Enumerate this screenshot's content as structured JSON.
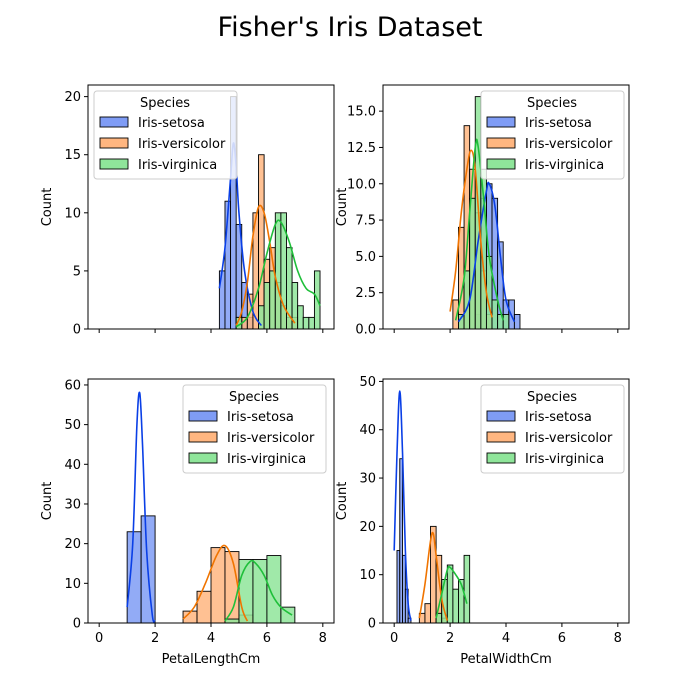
{
  "figure": {
    "title": "Fisher's Iris Dataset"
  },
  "species_colors": {
    "Iris-setosa": {
      "fill": "#7f9cf5",
      "line": "#0a3fe6"
    },
    "Iris-versicolor": {
      "fill": "#ffb680",
      "line": "#f07400"
    },
    "Iris-virginica": {
      "fill": "#8fe59a",
      "line": "#1fbf3a"
    }
  },
  "chart_data": [
    {
      "type": "bar",
      "subtype": "histogram-kde",
      "id": "sepal-length",
      "xlabel": "",
      "ylabel": "Count",
      "xlim": [
        -0.4,
        8.4
      ],
      "ylim": [
        0,
        21
      ],
      "xticks": [],
      "yticks": [
        0,
        5,
        10,
        15,
        20
      ],
      "legend": {
        "title": "Species",
        "placement": "upper-left",
        "entries": [
          "Iris-setosa",
          "Iris-versicolor",
          "Iris-virginica"
        ]
      },
      "series": [
        {
          "name": "Iris-setosa",
          "bin_width": 0.2,
          "bins": [
            [
              4.3,
              5
            ],
            [
              4.5,
              11
            ],
            [
              4.7,
              20
            ],
            [
              4.9,
              9
            ],
            [
              5.1,
              4
            ],
            [
              5.3,
              1
            ]
          ],
          "kde": [
            [
              4.3,
              3.5
            ],
            [
              4.5,
              7
            ],
            [
              4.7,
              13
            ],
            [
              4.8,
              16
            ],
            [
              4.9,
              14
            ],
            [
              5.0,
              10
            ],
            [
              5.2,
              5
            ],
            [
              5.5,
              1.5
            ],
            [
              5.8,
              0.3
            ]
          ]
        },
        {
          "name": "Iris-versicolor",
          "bin_width": 0.2,
          "bins": [
            [
              4.9,
              1
            ],
            [
              5.1,
              1
            ],
            [
              5.3,
              3
            ],
            [
              5.5,
              10
            ],
            [
              5.7,
              15
            ],
            [
              5.9,
              6
            ],
            [
              6.1,
              7
            ],
            [
              6.3,
              4
            ],
            [
              6.5,
              2
            ],
            [
              6.7,
              1
            ],
            [
              6.9,
              1
            ]
          ],
          "kde": [
            [
              4.9,
              0.3
            ],
            [
              5.1,
              1.5
            ],
            [
              5.3,
              4
            ],
            [
              5.5,
              8
            ],
            [
              5.7,
              10.5
            ],
            [
              5.9,
              10
            ],
            [
              6.1,
              7.5
            ],
            [
              6.3,
              4.5
            ],
            [
              6.6,
              2
            ],
            [
              7.0,
              0.5
            ]
          ]
        },
        {
          "name": "Iris-virginica",
          "bin_width": 0.2,
          "bins": [
            [
              4.9,
              1
            ],
            [
              5.7,
              2
            ],
            [
              5.9,
              4
            ],
            [
              6.1,
              5
            ],
            [
              6.3,
              10
            ],
            [
              6.5,
              10
            ],
            [
              6.7,
              7
            ],
            [
              6.9,
              4
            ],
            [
              7.1,
              2
            ],
            [
              7.3,
              1
            ],
            [
              7.5,
              1
            ],
            [
              7.7,
              5
            ]
          ],
          "kde": [
            [
              4.9,
              0.2
            ],
            [
              5.3,
              1
            ],
            [
              5.7,
              3.5
            ],
            [
              6.0,
              6.5
            ],
            [
              6.3,
              9
            ],
            [
              6.5,
              9.2
            ],
            [
              6.8,
              7.5
            ],
            [
              7.1,
              5
            ],
            [
              7.4,
              3.5
            ],
            [
              7.7,
              3
            ],
            [
              7.9,
              2
            ]
          ]
        }
      ]
    },
    {
      "type": "bar",
      "subtype": "histogram-kde",
      "id": "sepal-width",
      "xlabel": "",
      "ylabel": "Count",
      "xlim": [
        -0.4,
        8.4
      ],
      "ylim": [
        0,
        16.8
      ],
      "xticks": [],
      "yticks": [
        0,
        2.5,
        5.0,
        7.5,
        10.0,
        12.5,
        15.0
      ],
      "legend": {
        "title": "Species",
        "placement": "upper-right",
        "entries": [
          "Iris-setosa",
          "Iris-versicolor",
          "Iris-virginica"
        ]
      },
      "series": [
        {
          "name": "Iris-setosa",
          "bin_width": 0.2,
          "bins": [
            [
              2.3,
              1
            ],
            [
              2.9,
              1
            ],
            [
              3.1,
              9
            ],
            [
              3.3,
              10
            ],
            [
              3.5,
              9
            ],
            [
              3.7,
              6
            ],
            [
              3.9,
              2
            ],
            [
              4.1,
              2
            ],
            [
              4.3,
              1
            ]
          ],
          "kde": [
            [
              2.3,
              0.5
            ],
            [
              2.7,
              2
            ],
            [
              3.0,
              6
            ],
            [
              3.3,
              9.5
            ],
            [
              3.4,
              10
            ],
            [
              3.6,
              8.5
            ],
            [
              3.8,
              5
            ],
            [
              4.0,
              2
            ],
            [
              4.3,
              0.5
            ]
          ]
        },
        {
          "name": "Iris-versicolor",
          "bin_width": 0.2,
          "bins": [
            [
              2.1,
              2
            ],
            [
              2.3,
              7
            ],
            [
              2.5,
              14
            ],
            [
              2.7,
              11
            ],
            [
              2.9,
              8
            ],
            [
              3.1,
              4
            ],
            [
              3.3,
              1
            ]
          ],
          "kde": [
            [
              2.0,
              1.2
            ],
            [
              2.2,
              4
            ],
            [
              2.4,
              8
            ],
            [
              2.6,
              11
            ],
            [
              2.75,
              12.3
            ],
            [
              2.9,
              11
            ],
            [
              3.1,
              6
            ],
            [
              3.3,
              2.5
            ],
            [
              3.5,
              0.8
            ]
          ]
        },
        {
          "name": "Iris-virginica",
          "bin_width": 0.2,
          "bins": [
            [
              2.3,
              1
            ],
            [
              2.5,
              4
            ],
            [
              2.7,
              9
            ],
            [
              2.9,
              16
            ],
            [
              3.1,
              11
            ],
            [
              3.3,
              5
            ],
            [
              3.5,
              2
            ],
            [
              3.7,
              1
            ],
            [
              3.9,
              1
            ]
          ],
          "kde": [
            [
              2.2,
              0.6
            ],
            [
              2.5,
              3.5
            ],
            [
              2.7,
              8
            ],
            [
              2.9,
              12.5
            ],
            [
              3.0,
              12.6
            ],
            [
              3.2,
              9
            ],
            [
              3.4,
              5
            ],
            [
              3.7,
              2
            ],
            [
              3.9,
              0.6
            ]
          ]
        }
      ]
    },
    {
      "type": "bar",
      "subtype": "histogram-kde",
      "id": "petal-length",
      "xlabel": "PetalLengthCm",
      "ylabel": "Count",
      "xlim": [
        -0.4,
        8.4
      ],
      "ylim": [
        0,
        61.5
      ],
      "xticks": [
        0,
        2,
        4,
        6,
        8
      ],
      "yticks": [
        0,
        10,
        20,
        30,
        40,
        50,
        60
      ],
      "legend": {
        "title": "Species",
        "placement": "upper-right",
        "entries": [
          "Iris-setosa",
          "Iris-versicolor",
          "Iris-virginica"
        ]
      },
      "series": [
        {
          "name": "Iris-setosa",
          "bin_width": 0.5,
          "bins": [
            [
              1.0,
              23
            ],
            [
              1.5,
              27
            ]
          ],
          "kde": [
            [
              1.0,
              4
            ],
            [
              1.2,
              20
            ],
            [
              1.35,
              50
            ],
            [
              1.45,
              58
            ],
            [
              1.55,
              45
            ],
            [
              1.7,
              18
            ],
            [
              1.9,
              2
            ],
            [
              2.0,
              0.5
            ]
          ]
        },
        {
          "name": "Iris-versicolor",
          "bin_width": 0.5,
          "bins": [
            [
              3.0,
              3
            ],
            [
              3.5,
              8
            ],
            [
              4.0,
              19
            ],
            [
              4.5,
              18
            ],
            [
              5.0,
              2
            ]
          ],
          "kde": [
            [
              3.0,
              1
            ],
            [
              3.4,
              4
            ],
            [
              3.8,
              10
            ],
            [
              4.2,
              17
            ],
            [
              4.5,
              19.5
            ],
            [
              4.8,
              15
            ],
            [
              5.1,
              4
            ],
            [
              5.3,
              0.5
            ]
          ]
        },
        {
          "name": "Iris-virginica",
          "bin_width": 0.5,
          "bins": [
            [
              4.5,
              1
            ],
            [
              5.0,
              16
            ],
            [
              5.5,
              16
            ],
            [
              6.0,
              17
            ],
            [
              6.5,
              4
            ]
          ],
          "kde": [
            [
              4.5,
              0.5
            ],
            [
              4.8,
              4
            ],
            [
              5.1,
              12
            ],
            [
              5.4,
              15.5
            ],
            [
              5.6,
              15
            ],
            [
              5.9,
              12
            ],
            [
              6.2,
              7
            ],
            [
              6.5,
              4
            ],
            [
              6.9,
              2
            ]
          ]
        }
      ]
    },
    {
      "type": "bar",
      "subtype": "histogram-kde",
      "id": "petal-width",
      "xlabel": "PetalWidthCm",
      "ylabel": "Count",
      "xlim": [
        -0.4,
        8.4
      ],
      "ylim": [
        0,
        50.5
      ],
      "xticks": [
        0,
        2,
        4,
        6,
        8
      ],
      "yticks": [
        0,
        10,
        20,
        30,
        40,
        50
      ],
      "legend": {
        "title": "Species",
        "placement": "upper-right",
        "entries": [
          "Iris-setosa",
          "Iris-versicolor",
          "Iris-virginica"
        ]
      },
      "series": [
        {
          "name": "Iris-setosa",
          "bin_width": 0.1,
          "bins": [
            [
              0.1,
              15
            ],
            [
              0.2,
              34
            ],
            [
              0.3,
              14
            ],
            [
              0.4,
              7
            ],
            [
              0.5,
              1
            ]
          ],
          "kde": [
            [
              0.0,
              15
            ],
            [
              0.1,
              35
            ],
            [
              0.2,
              48
            ],
            [
              0.3,
              35
            ],
            [
              0.4,
              15
            ],
            [
              0.5,
              4
            ],
            [
              0.6,
              0.5
            ]
          ]
        },
        {
          "name": "Iris-versicolor",
          "bin_width": 0.2,
          "bins": [
            [
              0.9,
              2
            ],
            [
              1.1,
              4
            ],
            [
              1.3,
              20
            ],
            [
              1.5,
              14
            ],
            [
              1.7,
              1
            ]
          ],
          "kde": [
            [
              0.9,
              1
            ],
            [
              1.1,
              8
            ],
            [
              1.3,
              17
            ],
            [
              1.4,
              18.5
            ],
            [
              1.5,
              14
            ],
            [
              1.7,
              5
            ],
            [
              1.9,
              0.5
            ]
          ]
        },
        {
          "name": "Iris-virginica",
          "bin_width": 0.2,
          "bins": [
            [
              1.5,
              2
            ],
            [
              1.7,
              9
            ],
            [
              1.9,
              12
            ],
            [
              2.1,
              7
            ],
            [
              2.3,
              9
            ],
            [
              2.5,
              14
            ]
          ],
          "kde": [
            [
              1.5,
              1
            ],
            [
              1.7,
              6
            ],
            [
              1.9,
              11
            ],
            [
              2.0,
              11.5
            ],
            [
              2.2,
              10
            ],
            [
              2.4,
              8
            ],
            [
              2.6,
              4
            ]
          ]
        }
      ]
    }
  ]
}
